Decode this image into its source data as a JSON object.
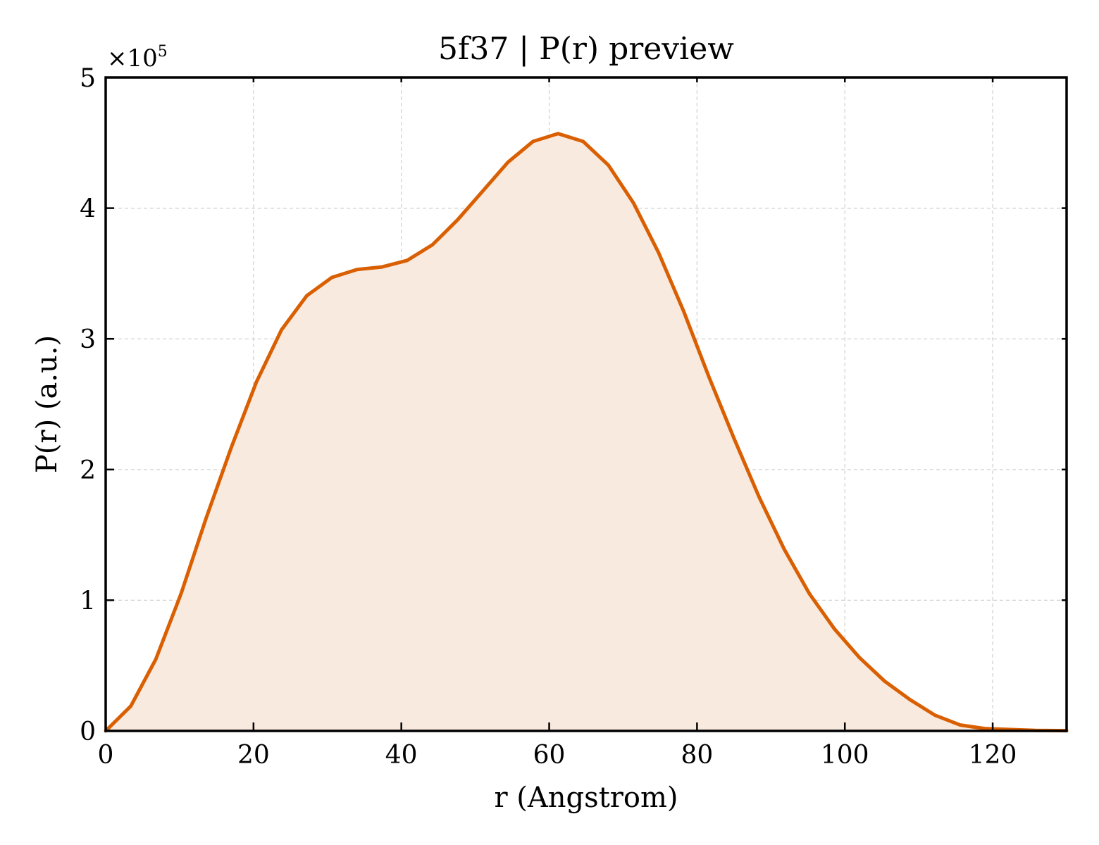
{
  "chart_data": {
    "type": "area",
    "title": "5f37 | P(r) preview",
    "xlabel": "r (Angstrom)",
    "ylabel": "P(r) (a.u.)",
    "y_multiplier": "×10",
    "y_multiplier_exp": "5",
    "xlim": [
      0,
      130
    ],
    "ylim": [
      0,
      5
    ],
    "xticks": [
      0,
      20,
      40,
      60,
      80,
      100,
      120
    ],
    "yticks": [
      0,
      1,
      2,
      3,
      4,
      5
    ],
    "xtick_labels": [
      "0",
      "20",
      "40",
      "60",
      "80",
      "100",
      "120"
    ],
    "ytick_labels": [
      "0",
      "1",
      "2",
      "3",
      "4",
      "5"
    ],
    "grid": true,
    "line_color": "#d95f02",
    "fill_color": "#f9eadf",
    "series": [
      {
        "x": [
          0,
          3.4,
          6.8,
          10.2,
          13.6,
          17.0,
          20.4,
          23.8,
          27.2,
          30.6,
          34.0,
          37.4,
          40.8,
          44.2,
          47.6,
          51.0,
          54.4,
          57.8,
          61.2,
          64.6,
          68.0,
          71.4,
          74.8,
          78.2,
          81.6,
          85.0,
          88.4,
          91.8,
          95.2,
          98.6,
          102.0,
          105.4,
          108.8,
          112.2,
          115.6,
          119.0,
          122.4,
          125.8,
          130.0
        ],
        "y": [
          0,
          0.19,
          0.55,
          1.05,
          1.63,
          2.17,
          2.67,
          3.07,
          3.33,
          3.47,
          3.53,
          3.55,
          3.6,
          3.72,
          3.91,
          4.13,
          4.35,
          4.51,
          4.57,
          4.51,
          4.33,
          4.04,
          3.66,
          3.21,
          2.71,
          2.24,
          1.79,
          1.39,
          1.05,
          0.78,
          0.56,
          0.38,
          0.24,
          0.12,
          0.045,
          0.017,
          0.011,
          0.004,
          0.002
        ]
      }
    ]
  }
}
